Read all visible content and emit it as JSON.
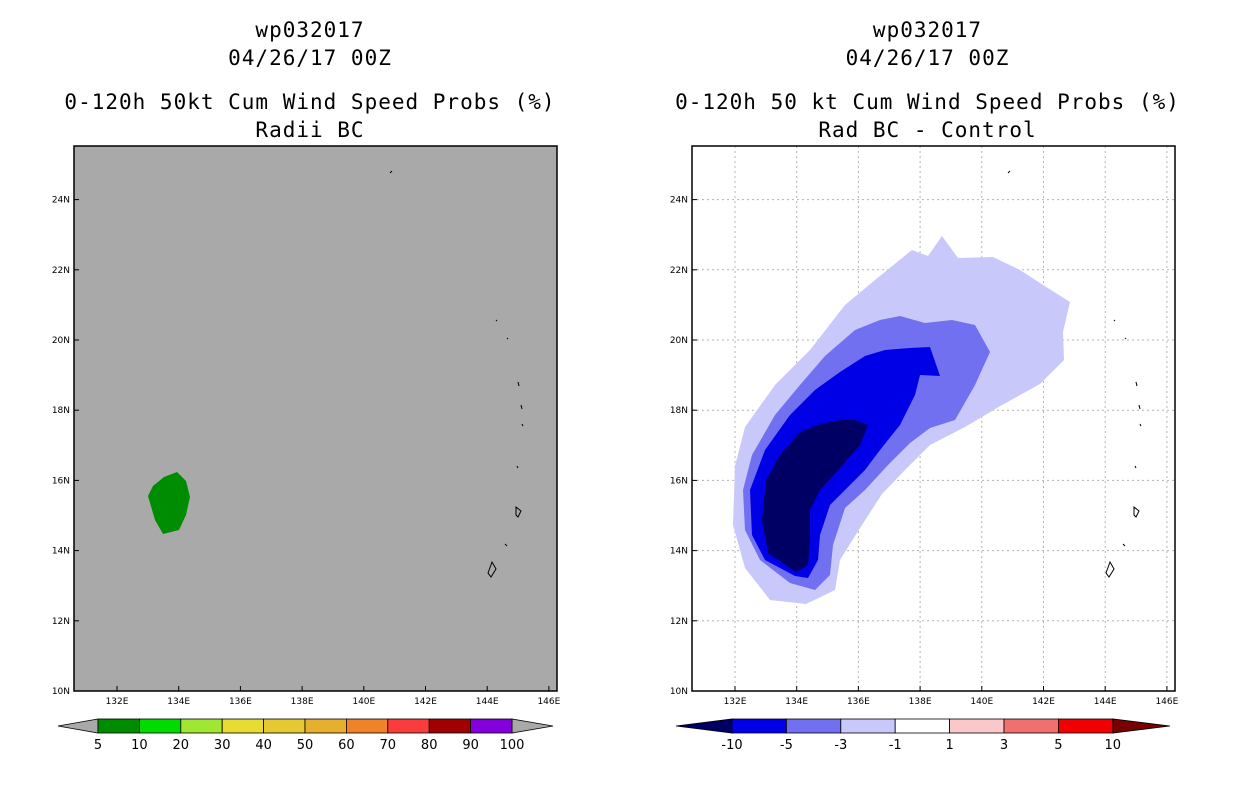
{
  "left_panel": {
    "title_line1": "wp032017",
    "title_line2": "04/26/17 00Z",
    "title_line3": "0-120h 50kt Cum Wind Speed Probs (%)",
    "title_line4": "Radii BC",
    "background_color": "#a9a9a9",
    "colorbar": {
      "labels": [
        "5",
        "10",
        "20",
        "30",
        "40",
        "50",
        "60",
        "70",
        "80",
        "90",
        "100"
      ],
      "colors": [
        "#008c00",
        "#00dc00",
        "#a0e632",
        "#e6dc32",
        "#e6c832",
        "#e6af2d",
        "#f08228",
        "#fa3c3c",
        "#a00000",
        "#8200dc"
      ]
    }
  },
  "right_panel": {
    "title_line1": "wp032017",
    "title_line2": "04/26/17 00Z",
    "title_line3": "0-120h 50 kt Cum Wind Speed Probs (%)",
    "title_line4": "Rad BC - Control",
    "colorbar": {
      "labels": [
        "-10",
        "-5",
        "-3",
        "-1",
        "1",
        "3",
        "5",
        "10"
      ],
      "colors": [
        "#0000e6",
        "#7070f0",
        "#c8c8fa",
        "#ffffff",
        "#fac8c8",
        "#f07070",
        "#f00000"
      ],
      "end_low": "#000064",
      "end_high": "#780000"
    }
  },
  "map": {
    "lon_labels": [
      "132E",
      "134E",
      "136E",
      "138E",
      "140E",
      "142E",
      "144E",
      "146E"
    ],
    "lat_labels": [
      "10N",
      "12N",
      "14N",
      "16N",
      "18N",
      "20N",
      "22N",
      "24N"
    ]
  }
}
